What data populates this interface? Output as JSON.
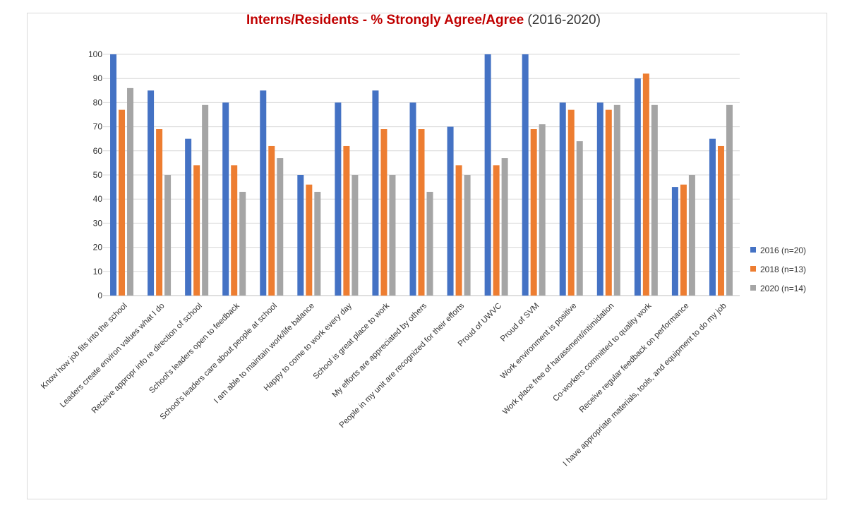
{
  "chart_data": {
    "type": "bar",
    "title": "Interns/Residents - % Strongly Agree/Agree",
    "subtitle": "(2016-2020)",
    "xlabel": "",
    "ylabel": "",
    "ylim": [
      0,
      100
    ],
    "yticks": [
      0,
      10,
      20,
      30,
      40,
      50,
      60,
      70,
      80,
      90,
      100
    ],
    "grid": true,
    "legend_position": "right",
    "categories": [
      "Know how job fits into the school",
      "Leaders create environ values what I do",
      "Receive appropr info re direction of school",
      "School's leaders open to feedback",
      "School's leaders care about people at school",
      "I am able to maintain work/life balance",
      "Happy to come to work every day",
      "School is great place to work",
      "My efforts are appreciated by others",
      "People in my unit are recognized for their efforts",
      "Proud of UWVC",
      "Proud of SVM",
      "Work environment is positive",
      "Work place free of harassment/intimidation",
      "Co-workers committed to quality work",
      "Receive regular feedback on performance",
      "I have appropriate materials, tools, and equipment to do my job"
    ],
    "series": [
      {
        "name": "2016 (n=20)",
        "color": "#4472c4",
        "values": [
          100,
          85,
          65,
          80,
          85,
          50,
          80,
          85,
          80,
          70,
          100,
          100,
          80,
          80,
          90,
          45,
          65
        ]
      },
      {
        "name": "2018 (n=13)",
        "color": "#ed7d31",
        "values": [
          77,
          69,
          54,
          54,
          62,
          46,
          62,
          69,
          69,
          54,
          54,
          69,
          77,
          77,
          92,
          46,
          62
        ]
      },
      {
        "name": "2020 (n=14)",
        "color": "#a5a5a5",
        "values": [
          86,
          50,
          79,
          43,
          57,
          43,
          50,
          50,
          43,
          50,
          57,
          71,
          64,
          79,
          79,
          50,
          79
        ]
      }
    ]
  }
}
